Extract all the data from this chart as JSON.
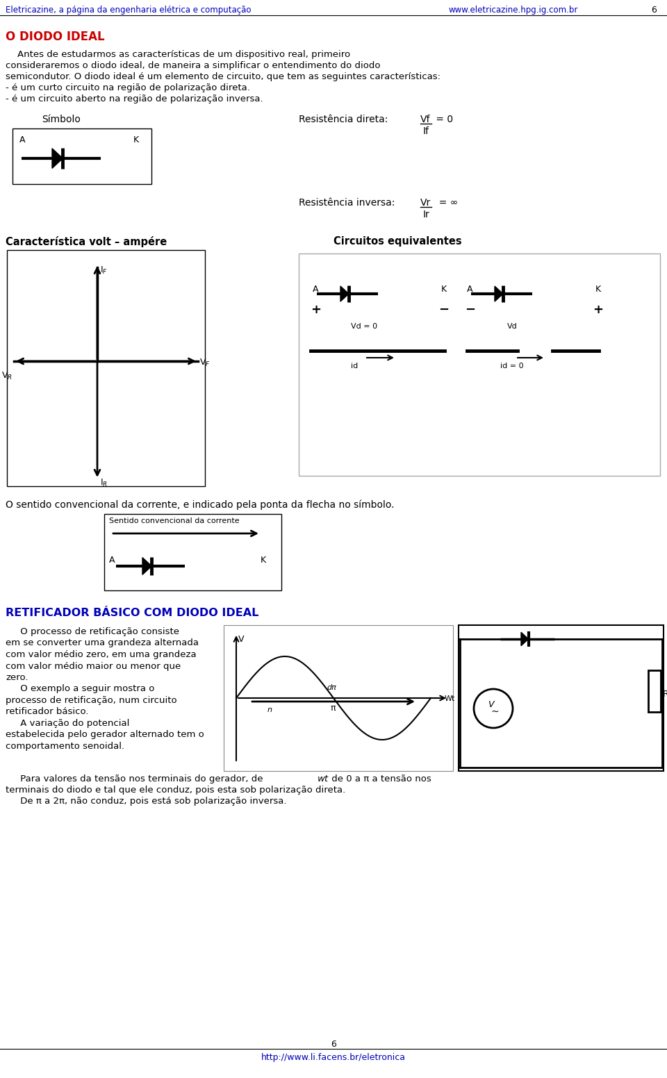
{
  "page_bg": "#ffffff",
  "header_left": "Eletricazine, a página da engenharia elétrica e computação",
  "header_right": "www.eletricazine.hpg.ig.com.br",
  "header_page": "6",
  "header_color": "#0000bb",
  "section1_title": "O DIODO IDEAL",
  "section1_color": "#cc0000",
  "section2_title": "RETIFICADOR BÁSICO COM DIODO IDEAL",
  "section2_color": "#0000bb",
  "label_simbolo": "Símbolo",
  "label_res_direta_prefix": "Resistência direta:  ",
  "label_res_direta_vf": "Vf",
  "label_res_direta_suffix": " = 0",
  "label_res_direta_sub": "If",
  "label_res_inversa_prefix": "Resistência inversa:  ",
  "label_res_inversa_vr": "Vr",
  "label_res_inversa_suffix": "  = ∞",
  "label_res_inversa_sub": "Ir",
  "label_caract": "Característica volt – ampére",
  "label_circ_eq": "Circuitos equivalentes",
  "label_IF": "I$_F$",
  "label_VF": "V$_F$",
  "label_IR": "I$_R$",
  "label_VR": "V$_R$",
  "label_sentido_text": "O sentido convencional da corrente, e indicado pela ponta da flecha no símbolo.",
  "label_sentido_box": "Sentido convencional da corrente",
  "footer_page": "6",
  "footer_url": "http://www.li.facens.br/eletronica",
  "footer_color": "#0000bb",
  "body1_line1": "    Antes de estudarmos as características de um dispositivo real, primeiro",
  "body1_line2": "consideraremos o diodo ideal, de maneira a simplificar o entendimento do diodo",
  "body1_line3": "semicondutor. O diodo ideal é um elemento de circuito, que tem as seguintes características:",
  "body1_line4": "- é um curto circuito na região de polarização direta.",
  "body1_line5": "- é um circuito aberto na região de polarização inversa.",
  "body2_lines": [
    "     O processo de retificação consiste",
    "em se converter uma grandeza alternada",
    "com valor médio zero, em uma grandeza",
    "com valor médio maior ou menor que",
    "zero.",
    "     O exemplo a seguir mostra o",
    "processo de retificação, num circuito",
    "retificador básico.",
    "     A variação do potencial",
    "estabelecida pelo gerador alternado tem o",
    "comportamento senoidal."
  ],
  "body3_lines": [
    "     Para valores da tensão nos terminais do gerador, de ",
    " de 0 a π a tensão nos",
    "terminais do diodo e tal que ele conduz, pois esta sob polarização direta.",
    "     De π a 2π, não conduz, pois está sob polarização inversa."
  ]
}
